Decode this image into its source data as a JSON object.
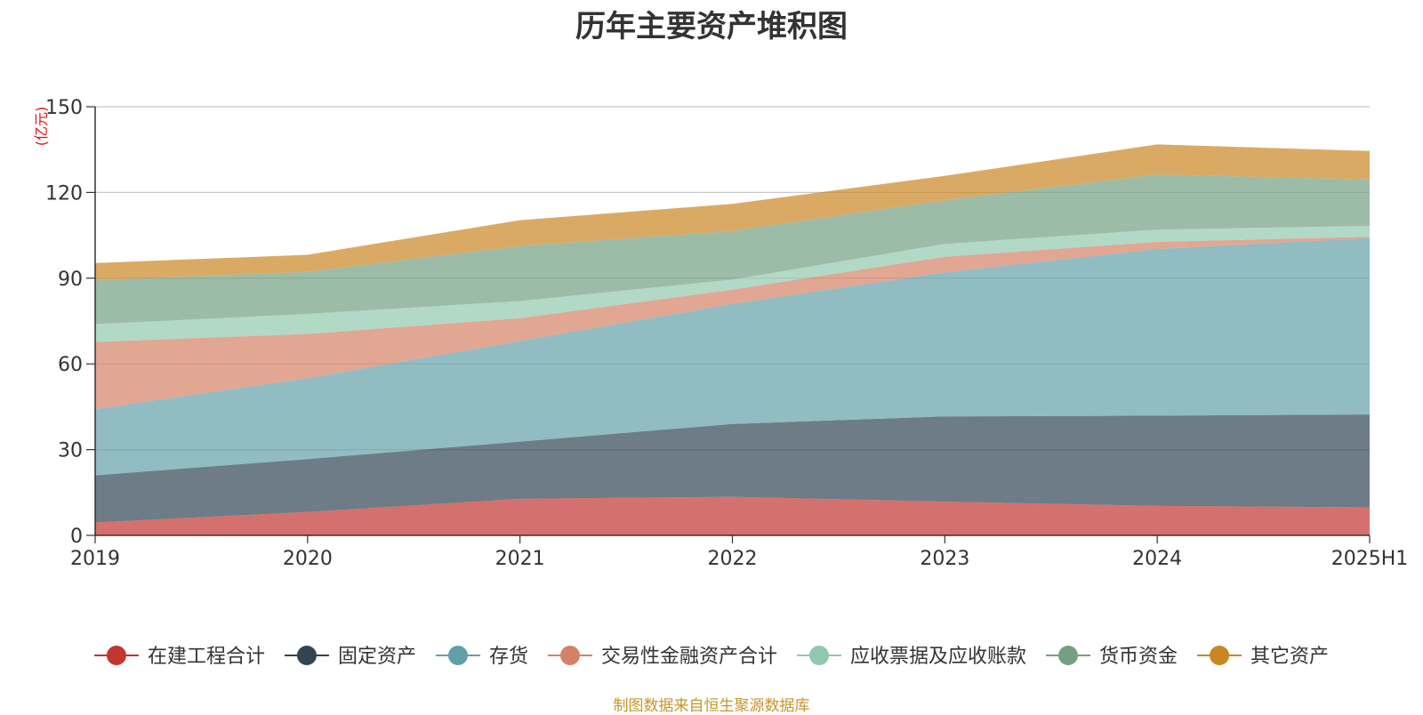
{
  "chart_data": {
    "type": "area",
    "stacked": true,
    "title": "历年主要资产堆积图",
    "ylabel": "(亿元)",
    "xlabel": "",
    "categories": [
      "2019",
      "2020",
      "2021",
      "2022",
      "2023",
      "2024",
      "2025H1"
    ],
    "ylim": [
      0,
      150
    ],
    "yticks": [
      0,
      30,
      60,
      90,
      120,
      150
    ],
    "grid": true,
    "legend_position": "bottom",
    "series": [
      {
        "name": "在建工程合计",
        "color": "#c23531",
        "values": [
          4.5,
          8.2,
          12.8,
          13.5,
          11.8,
          10.3,
          9.8
        ]
      },
      {
        "name": "固定资产",
        "color": "#2f4554",
        "values": [
          16.5,
          18.5,
          20.0,
          25.5,
          29.8,
          31.6,
          32.5
        ]
      },
      {
        "name": "存货",
        "color": "#61a0a8",
        "values": [
          23.2,
          28.3,
          35.2,
          42.0,
          50.4,
          58.3,
          61.7
        ]
      },
      {
        "name": "交易性金融资产合计",
        "color": "#d48265",
        "values": [
          23.5,
          15.5,
          8.0,
          5.0,
          5.5,
          2.5,
          0.5
        ]
      },
      {
        "name": "应收票据及应收账款",
        "color": "#91c7ae",
        "values": [
          6.2,
          7.0,
          6.0,
          3.5,
          4.5,
          4.3,
          3.8
        ]
      },
      {
        "name": "货币资金",
        "color": "#749f83",
        "values": [
          15.4,
          14.7,
          19.3,
          17.0,
          15.3,
          19.3,
          16.2
        ]
      },
      {
        "name": "其它资产",
        "color": "#ca8622",
        "values": [
          6.0,
          6.0,
          9.0,
          9.5,
          8.5,
          10.5,
          10.0
        ]
      }
    ]
  },
  "source_note": "制图数据来自恒生聚源数据库"
}
